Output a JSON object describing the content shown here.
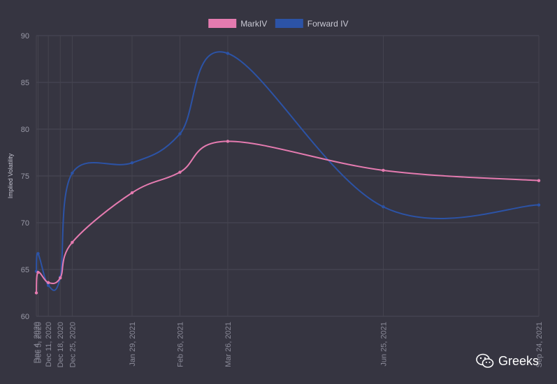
{
  "chart_data": {
    "type": "line",
    "ylabel": "Implied Volatility",
    "xlabel": "",
    "ylim": [
      60,
      90
    ],
    "yticks": [
      60,
      65,
      70,
      75,
      80,
      85,
      90
    ],
    "x": [
      "Dec 4, 2020",
      "Dec 5, 2020",
      "Dec 11, 2020",
      "Dec 18, 2020",
      "Dec 25, 2020",
      "Jan 29, 2021",
      "Feb 26, 2021",
      "Mar 26, 2021",
      "Jun 25, 2021",
      "Sep 24, 2021"
    ],
    "x_tick_labels": [
      "Dec 4, 2020",
      "Dec 5, 2020",
      "Dec 11, 2020",
      "Dec 18, 2020",
      "Dec 25, 2020",
      "Jan 29, 2021",
      "Feb 26, 2021",
      "Mar 26, 2021",
      "Jun 25, 2021",
      "Sep 24, 2021"
    ],
    "series": [
      {
        "name": "MarkIV",
        "color": "#e57bb0",
        "values": [
          62.5,
          64.7,
          63.6,
          64.1,
          67.9,
          73.2,
          75.4,
          78.7,
          75.6,
          74.5
        ]
      },
      {
        "name": "Forward IV",
        "color": "#2c53a6",
        "values": [
          64.8,
          66.7,
          63.3,
          64.2,
          75.3,
          76.4,
          79.5,
          88.1,
          71.7,
          71.9
        ]
      }
    ],
    "grid": true,
    "legend_position": "top-center"
  },
  "watermark": {
    "text": "Greeks"
  }
}
